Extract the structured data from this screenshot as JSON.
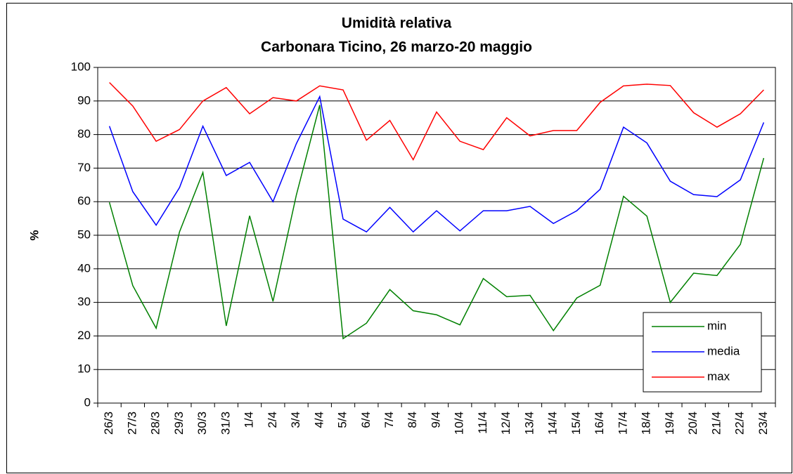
{
  "chart_data": {
    "type": "line",
    "title": "Umidità relativa",
    "subtitle": "Carbonara Ticino, 26 marzo-20  maggio",
    "y_label": "%",
    "categories": [
      "26/3",
      "27/3",
      "28/3",
      "29/3",
      "30/3",
      "31/3",
      "1/4",
      "2/4",
      "3/4",
      "4/4",
      "5/4",
      "6/4",
      "7/4",
      "8/4",
      "9/4",
      "10/4",
      "11/4",
      "12/4",
      "13/4",
      "14/4",
      "15/4",
      "16/4",
      "17/4",
      "18/4",
      "19/4",
      "20/4",
      "21/4",
      "22/4",
      "23/4"
    ],
    "series": [
      {
        "name": "min",
        "color": "#008000",
        "values": [
          59.8,
          35,
          22.3,
          51,
          68.7,
          23,
          55.8,
          30.3,
          62,
          88.8,
          19.2,
          23.8,
          33.8,
          27.5,
          26.3,
          23.3,
          37.1,
          31.7,
          32.1,
          21.6,
          31.3,
          35.1,
          61.6,
          55.7,
          30,
          38.7,
          38,
          47.3,
          73
        ]
      },
      {
        "name": "media",
        "color": "#0000ff",
        "values": [
          82.5,
          63,
          53,
          64.2,
          82.5,
          67.8,
          71.7,
          60,
          77.3,
          91.3,
          54.8,
          51,
          58.3,
          51,
          57.3,
          51.3,
          57.3,
          57.3,
          58.6,
          53.5,
          57.3,
          63.7,
          82.2,
          77.5,
          66.1,
          62.1,
          61.5,
          66.5,
          83.6
        ]
      },
      {
        "name": "max",
        "color": "#ff0000",
        "values": [
          95.5,
          88.5,
          78,
          81.5,
          90,
          94,
          86.2,
          91,
          90,
          94.5,
          93.3,
          78.3,
          84.2,
          72.5,
          86.7,
          78,
          75.5,
          85,
          79.6,
          81.2,
          81.2,
          89.6,
          94.5,
          95,
          94.6,
          86.5,
          82.2,
          86.2,
          93.3
        ]
      }
    ],
    "ylim": [
      0,
      100
    ],
    "yticks": [
      0,
      10,
      20,
      30,
      40,
      50,
      60,
      70,
      80,
      90,
      100
    ],
    "grid": true,
    "legend": "lower right"
  }
}
